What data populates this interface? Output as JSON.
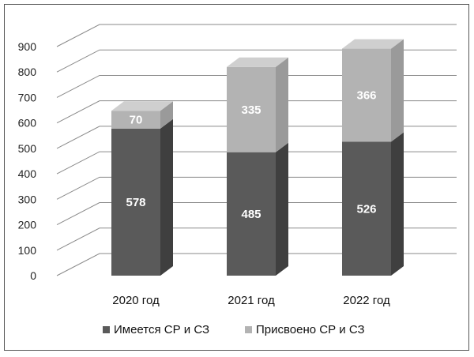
{
  "chart_data": {
    "type": "bar",
    "stacked": true,
    "three_d": true,
    "categories": [
      "2020 год",
      "2021 год",
      "2022 год"
    ],
    "series": [
      {
        "name": "Имеется СР и СЗ",
        "values": [
          578,
          485,
          526
        ],
        "color": "#5a5a5a"
      },
      {
        "name": "Присвоено СР и СЗ",
        "values": [
          70,
          335,
          366
        ],
        "color": "#b3b3b3"
      }
    ],
    "ylim": [
      0,
      900
    ],
    "yticks": [
      "0",
      "100",
      "200",
      "300",
      "400",
      "500",
      "600",
      "700",
      "800",
      "900"
    ],
    "grid": true,
    "legend_position": "bottom"
  }
}
